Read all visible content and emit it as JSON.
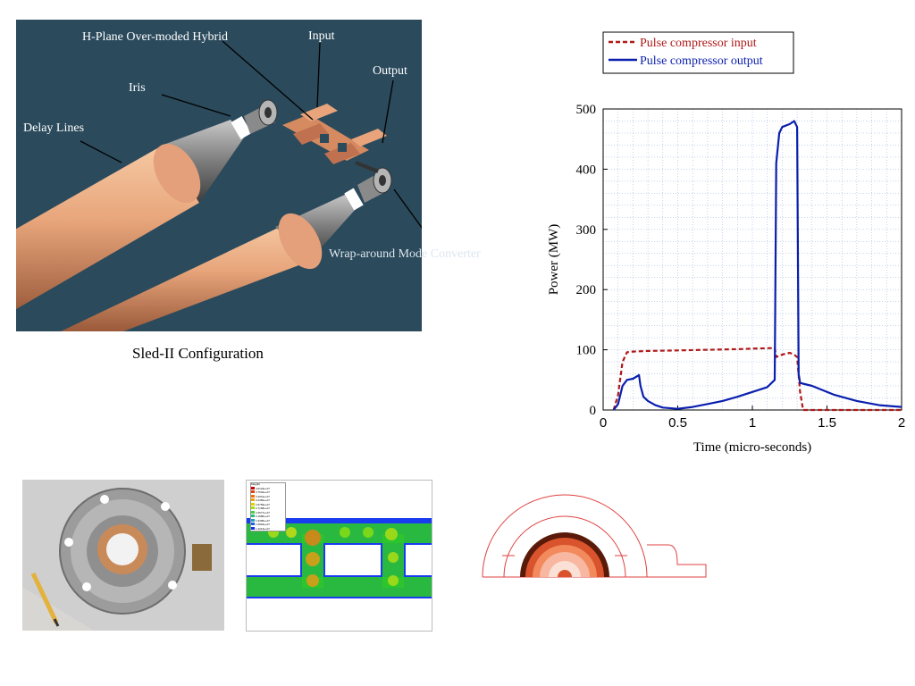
{
  "figure": {
    "labels": {
      "hybrid": "H-Plane Over-moded Hybrid",
      "input": "Input",
      "output": "Output",
      "iris": "Iris",
      "delay_lines": "Delay Lines",
      "converter": "Wrap-around Mode Converter"
    },
    "caption": "Sled-II Configuration"
  },
  "chart_data": {
    "type": "line",
    "title": "",
    "xlabel": "Time (micro-seconds)",
    "ylabel": "Power (MW)",
    "xlim": [
      0,
      2
    ],
    "ylim": [
      0,
      500
    ],
    "xticks": [
      "0",
      "0.5",
      "1",
      "1.5",
      "2"
    ],
    "yticks": [
      "0",
      "100",
      "200",
      "300",
      "400",
      "500"
    ],
    "grid": true,
    "legend_position": "top",
    "series": [
      {
        "name": "Pulse compressor input",
        "color": "#b01818",
        "style": "dashed",
        "x": [
          0.07,
          0.1,
          0.13,
          0.16,
          0.2,
          0.3,
          0.5,
          0.7,
          0.9,
          1.0,
          1.15,
          1.16,
          1.2,
          1.25,
          1.28,
          1.3,
          1.32,
          1.34,
          1.5,
          1.8,
          2.0
        ],
        "y": [
          0,
          25,
          80,
          96,
          97,
          98,
          99,
          100,
          101,
          102,
          103,
          88,
          92,
          95,
          92,
          88,
          30,
          0,
          0,
          0,
          0
        ]
      },
      {
        "name": "Pulse compressor output",
        "color": "#0a1fae",
        "style": "solid",
        "x": [
          0.07,
          0.1,
          0.13,
          0.16,
          0.2,
          0.24,
          0.25,
          0.27,
          0.3,
          0.35,
          0.4,
          0.5,
          0.6,
          0.7,
          0.8,
          0.9,
          1.0,
          1.1,
          1.15,
          1.16,
          1.18,
          1.2,
          1.25,
          1.28,
          1.3,
          1.31,
          1.32,
          1.35,
          1.4,
          1.45,
          1.55,
          1.7,
          1.85,
          2.0
        ],
        "y": [
          0,
          10,
          40,
          50,
          52,
          58,
          40,
          22,
          15,
          8,
          4,
          2,
          5,
          10,
          15,
          22,
          30,
          38,
          50,
          410,
          460,
          470,
          475,
          480,
          470,
          60,
          45,
          43,
          40,
          35,
          25,
          15,
          8,
          5
        ]
      }
    ]
  },
  "field_legend": {
    "title": "Mag(E)",
    "entries": [
      "4.0123e+07",
      "3.7532e+07",
      "3.4941e+07",
      "3.2350e+07",
      "2.9759e+07",
      "2.7168e+07",
      "2.4577e+07",
      "2.1986e+07",
      "1.9395e+07",
      "1.6804e+07",
      "1.4213e+07"
    ]
  }
}
